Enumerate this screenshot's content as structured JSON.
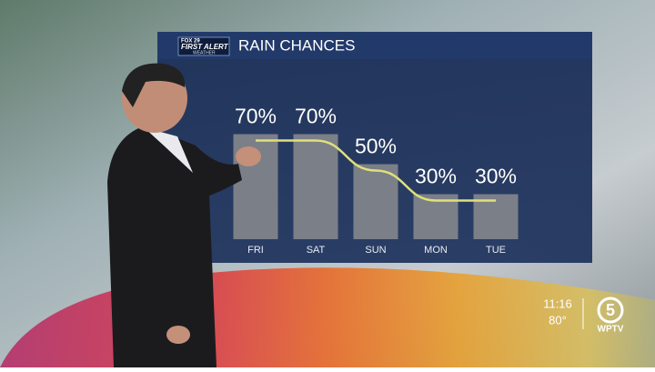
{
  "chart_data": {
    "type": "bar",
    "title": "RAIN CHANCES",
    "categories": [
      "FRI",
      "SAT",
      "SUN",
      "MON",
      "TUE"
    ],
    "values": [
      70,
      70,
      50,
      30,
      30
    ],
    "value_labels": [
      "70%",
      "70%",
      "50%",
      "30%",
      "30%"
    ],
    "color": "#7b7f88",
    "line_color": "#dfe07a",
    "ylim": [
      0,
      100
    ]
  },
  "logo": {
    "network": "FOX 29",
    "brand": "FIRST ALERT",
    "sub": "WEATHER"
  },
  "overlay": {
    "time": "11:16",
    "temperature": "80°",
    "channel": "5",
    "station": "WPTV"
  }
}
